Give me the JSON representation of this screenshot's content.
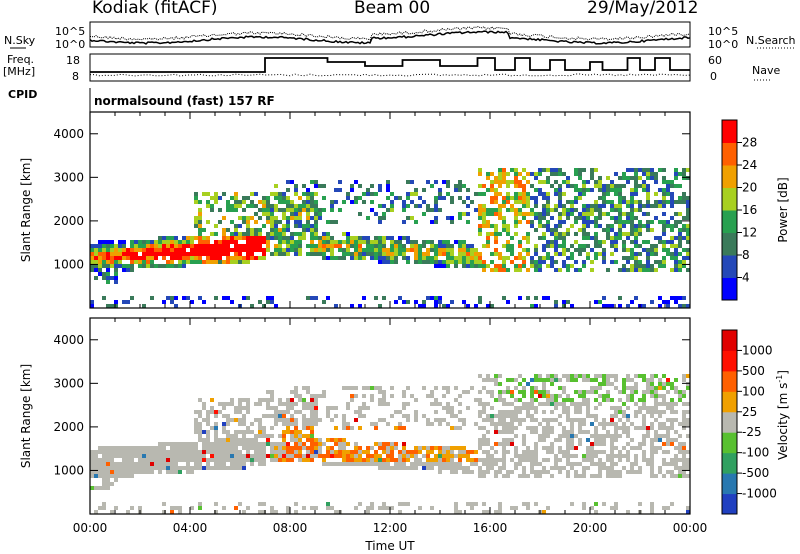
{
  "header": {
    "station": "Kodiak (fitACF)",
    "beam": "Beam 00",
    "date": "29/May/2012"
  },
  "summary_panels": {
    "left_labels": {
      "nsky": "N.Sky",
      "freq": "Freq.",
      "freq_unit": "[MHz]",
      "cpid": "CPID"
    },
    "right_labels": {
      "nsearch": "N.Search",
      "nave": "Nave"
    },
    "noise_ticks_left": [
      "10^5",
      "10^0"
    ],
    "noise_ticks_right": [
      "10^5",
      "10^0"
    ],
    "freq_ticks": [
      "18",
      "8"
    ],
    "nave_ticks": [
      "60",
      "0"
    ],
    "cpid_text": "normalsound (fast) 157 RF"
  },
  "chart_data": [
    {
      "type": "heatmap",
      "title": "",
      "ylabel": "Slant Range [km]",
      "xlabel": "",
      "x_range_hours": [
        0,
        24
      ],
      "ylim": [
        0,
        4500
      ],
      "yticks": [
        "4000",
        "3000",
        "2000",
        "1000"
      ],
      "colorbar": {
        "label": "Power [dB]",
        "ticks": [
          "28",
          "24",
          "20",
          "16",
          "12",
          "8",
          "4"
        ],
        "colors": [
          "#0000ff",
          "#2448b8",
          "#3a7a5a",
          "#28a050",
          "#a8d020",
          "#f0a000",
          "#ff6000",
          "#ff0000"
        ]
      }
    },
    {
      "type": "heatmap",
      "title": "",
      "ylabel": "Slant Range [km]",
      "xlabel": "Time UT",
      "x_range_hours": [
        0,
        24
      ],
      "ylim": [
        0,
        4500
      ],
      "yticks": [
        "4000",
        "3000",
        "2000",
        "1000"
      ],
      "xticks": [
        "00:00",
        "04:00",
        "08:00",
        "12:00",
        "16:00",
        "20:00",
        "00:00"
      ],
      "colorbar": {
        "label": "Velocity [m s",
        "label_sup": "-1",
        "label_end": "]",
        "ticks": [
          "1000",
          "500",
          "100",
          "25",
          "-25",
          "-100",
          "-500",
          "-1000"
        ],
        "colors": [
          "#2040c0",
          "#2878b0",
          "#30a060",
          "#58c030",
          "#b8b8b0",
          "#f0a000",
          "#ff6000",
          "#ff1000",
          "#e00000"
        ]
      }
    }
  ]
}
